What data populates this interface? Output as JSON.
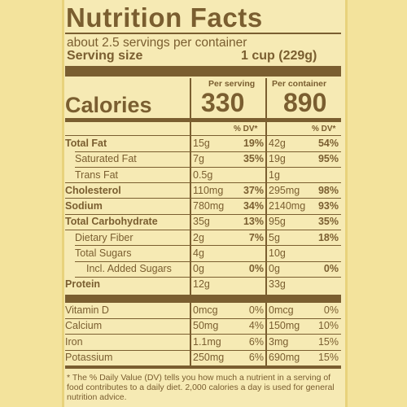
{
  "title": "Nutrition Facts",
  "servings_per_container": "about 2.5 servings per container",
  "serving_size": {
    "label": "Serving size",
    "value": "1 cup (229g)"
  },
  "columns": {
    "per_serving": "Per serving",
    "per_container": "Per container",
    "dv_header": "% DV*"
  },
  "calories": {
    "label": "Calories",
    "per_serving": "330",
    "per_container": "890"
  },
  "nutrients": [
    {
      "label": "Total Fat",
      "bold": true,
      "indent": 0,
      "s_amt": "15g",
      "s_dv": "19%",
      "c_amt": "42g",
      "c_dv": "54%"
    },
    {
      "label": "Saturated Fat",
      "bold": false,
      "indent": 1,
      "s_amt": "7g",
      "s_dv": "35%",
      "c_amt": "19g",
      "c_dv": "95%"
    },
    {
      "label": "Trans Fat",
      "bold": false,
      "indent": 1,
      "s_amt": "0.5g",
      "s_dv": "",
      "c_amt": "1g",
      "c_dv": ""
    },
    {
      "label": "Cholesterol",
      "bold": true,
      "indent": 0,
      "s_amt": "110mg",
      "s_dv": "37%",
      "c_amt": "295mg",
      "c_dv": "98%"
    },
    {
      "label": "Sodium",
      "bold": true,
      "indent": 0,
      "s_amt": "780mg",
      "s_dv": "34%",
      "c_amt": "2140mg",
      "c_dv": "93%"
    },
    {
      "label": "Total Carbohydrate",
      "bold": true,
      "indent": 0,
      "s_amt": "35g",
      "s_dv": "13%",
      "c_amt": "95g",
      "c_dv": "35%"
    },
    {
      "label": "Dietary Fiber",
      "bold": false,
      "indent": 1,
      "s_amt": "2g",
      "s_dv": "7%",
      "c_amt": "5g",
      "c_dv": "18%"
    },
    {
      "label": "Total Sugars",
      "bold": false,
      "indent": 1,
      "s_amt": "4g",
      "s_dv": "",
      "c_amt": "10g",
      "c_dv": ""
    },
    {
      "label": "Incl. Added Sugars",
      "bold": false,
      "indent": 2,
      "s_amt": "0g",
      "s_dv": "0%",
      "c_amt": "0g",
      "c_dv": "0%"
    },
    {
      "label": "Protein",
      "bold": true,
      "indent": 0,
      "s_amt": "12g",
      "s_dv": "",
      "c_amt": "33g",
      "c_dv": ""
    }
  ],
  "vitamins": [
    {
      "label": "Vitamin D",
      "s_amt": "0mcg",
      "s_dv": "0%",
      "c_amt": "0mcg",
      "c_dv": "0%"
    },
    {
      "label": "Calcium",
      "s_amt": "50mg",
      "s_dv": "4%",
      "c_amt": "150mg",
      "c_dv": "10%"
    },
    {
      "label": "Iron",
      "s_amt": "1.1mg",
      "s_dv": "6%",
      "c_amt": "3mg",
      "c_dv": "15%"
    },
    {
      "label": "Potassium",
      "s_amt": "250mg",
      "s_dv": "6%",
      "c_amt": "690mg",
      "c_dv": "15%"
    }
  ],
  "footnote": "* The % Daily Value (DV) tells you how much a nutrient in a serving of food contributes to a daily diet. 2,000 calories a day is used for general nutrition advice.",
  "colors": {
    "ink": "#7a5e30",
    "label_bg": "#f6eab4",
    "page_bg": "#f3e39c"
  }
}
